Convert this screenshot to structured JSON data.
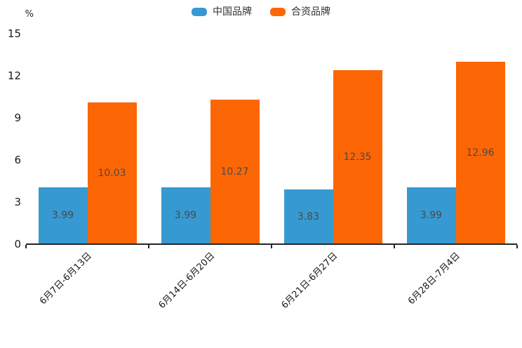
{
  "legend": {
    "items": [
      {
        "label": "中国品牌",
        "color": "#3799D1"
      },
      {
        "label": "合资品牌",
        "color": "#FC6605"
      }
    ]
  },
  "chart_data": {
    "type": "bar",
    "title": "",
    "ylabel": "%",
    "xlabel": "",
    "categories": [
      "6月7日-6月13日",
      "6月14日-6月20日",
      "6月21日-6月27日",
      "6月28日-7月4日"
    ],
    "series": [
      {
        "name": "中国品牌",
        "color": "#3799D1",
        "values": [
          3.99,
          3.99,
          3.83,
          3.99
        ]
      },
      {
        "name": "合资品牌",
        "color": "#FC6605",
        "values": [
          10.03,
          10.27,
          12.35,
          12.96
        ]
      }
    ],
    "ylim": [
      0,
      15
    ],
    "yticks": [
      0,
      3,
      6,
      9,
      12,
      15
    ],
    "grid": false,
    "legend_position": "top-center",
    "value_labels": "inside-center",
    "axis_color": "#262626",
    "value_label_color": "#4a4a4a"
  }
}
